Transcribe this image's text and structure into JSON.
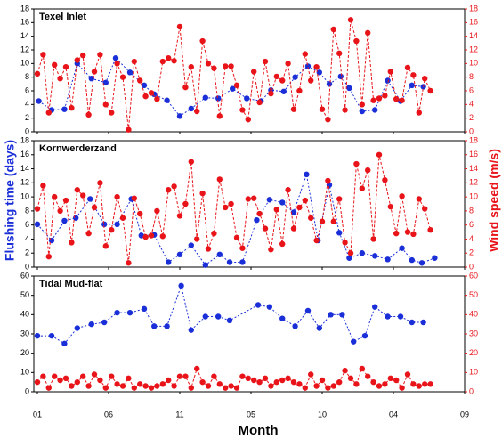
{
  "xlabel": "Month",
  "ylabel": "Flushing time (days)",
  "y2label": "Wind speed (m/s)",
  "xlim": [
    -0.25,
    30
  ],
  "xticks": [
    {
      "value": 0,
      "label": "01"
    },
    {
      "value": 5,
      "label": "06"
    },
    {
      "value": 10,
      "label": "11"
    },
    {
      "value": 15,
      "label": "05"
    },
    {
      "value": 20,
      "label": "10"
    },
    {
      "value": 25,
      "label": "04"
    },
    {
      "value": 30,
      "label": "09"
    }
  ],
  "chart_data": [
    {
      "type": "line",
      "title": "Texel Inlet",
      "ylim": [
        0,
        18
      ],
      "yticks": [
        0,
        2,
        4,
        6,
        8,
        10,
        12,
        14,
        16,
        18
      ],
      "y2lim": [
        0,
        18
      ],
      "y2ticks": [
        0,
        2,
        4,
        6,
        8,
        10,
        12,
        14,
        16,
        18
      ],
      "series": [
        {
          "color": "#1a2fd8",
          "x": [
            0.1,
            1,
            1.9,
            2.8,
            3.8,
            4.8,
            5.5,
            6.5,
            7.5,
            8.2,
            9.1,
            10,
            10.8,
            11.8,
            12.7,
            13.7,
            14.7,
            15.7,
            16.4,
            17.3,
            18.1,
            19,
            19.8,
            20.5,
            21.3,
            21.9,
            22.8,
            23.7,
            24.6,
            25.5,
            26.3,
            27.1
          ],
          "values": [
            4.5,
            3.2,
            3.3,
            10,
            7.8,
            7.2,
            10.8,
            8.7,
            6.8,
            5.5,
            4.6,
            2.3,
            3.4,
            5,
            4.9,
            6.3,
            4.9,
            4.5,
            6.1,
            5.9,
            8,
            9.6,
            8.7,
            7,
            8.1,
            6.4,
            3,
            3.2,
            7.5,
            4.5,
            6.8,
            6.6
          ]
        },
        {
          "color": "#e8141a",
          "axis": "y2",
          "x": [
            0,
            0.4,
            0.8,
            1.2,
            1.6,
            2,
            2.4,
            2.8,
            3.2,
            3.6,
            4,
            4.4,
            4.8,
            5.2,
            5.6,
            6,
            6.4,
            6.8,
            7.2,
            7.6,
            8,
            8.4,
            8.8,
            9.2,
            9.6,
            10,
            10.4,
            10.8,
            11.2,
            11.6,
            12,
            12.4,
            12.8,
            13.2,
            13.6,
            14,
            14.4,
            14.8,
            15.2,
            15.6,
            16,
            16.4,
            16.8,
            17.2,
            17.6,
            18,
            18.4,
            18.8,
            19.2,
            19.6,
            20,
            20.4,
            20.8,
            21.2,
            21.6,
            22,
            22.4,
            22.8,
            23.2,
            23.6,
            24,
            24.4,
            24.8,
            25.2,
            25.6,
            26,
            26.4,
            26.8,
            27.2,
            27.6
          ],
          "values": [
            8.5,
            11.3,
            2.8,
            9.8,
            7.8,
            9.5,
            3.5,
            10.5,
            11.2,
            2.5,
            8.8,
            11.3,
            4,
            2.8,
            10,
            8,
            0.3,
            10.3,
            7.5,
            5.2,
            5.7,
            4.8,
            10.3,
            10.8,
            10.4,
            15.4,
            6.5,
            9.5,
            3,
            13.3,
            10,
            9.3,
            2.3,
            9.6,
            9.6,
            6.8,
            3.2,
            1.8,
            8.8,
            4.3,
            10.3,
            5.6,
            8.1,
            7.5,
            10,
            3.3,
            6,
            11.4,
            7.5,
            9.5,
            3.3,
            1.8,
            15,
            11.5,
            3.2,
            16.4,
            13.3,
            4,
            14.5,
            4.6,
            4.9,
            5.3,
            8.8,
            4.8,
            4.6,
            9.4,
            8.3,
            2.8,
            7.8,
            6
          ]
        }
      ]
    },
    {
      "type": "line",
      "title": "Kornwerderzand",
      "ylim": [
        0,
        18
      ],
      "yticks": [
        0,
        2,
        4,
        6,
        8,
        10,
        12,
        14,
        16,
        18
      ],
      "y2lim": [
        0,
        18
      ],
      "y2ticks": [
        0,
        2,
        4,
        6,
        8,
        10,
        12,
        14,
        16,
        18
      ],
      "series": [
        {
          "color": "#1a2fd8",
          "x": [
            0,
            1,
            1.9,
            2.7,
            3.7,
            4.7,
            5.6,
            6.6,
            7.3,
            8.2,
            9.2,
            10,
            10.8,
            11.8,
            12.8,
            13.5,
            14.4,
            15.4,
            16.3,
            17.2,
            18,
            18.9,
            19.7,
            20.5,
            21.2,
            21.9,
            22.8,
            23.7,
            24.6,
            25.6,
            26.3,
            27,
            27.9
          ],
          "values": [
            6.1,
            3.8,
            6.6,
            7,
            9.7,
            6.1,
            6.1,
            9.7,
            4.5,
            4.6,
            0.7,
            1.8,
            3.1,
            0.3,
            1.8,
            0.7,
            0.7,
            6.7,
            9.6,
            9.2,
            7.8,
            13.2,
            3.8,
            11.7,
            4.9,
            1.3,
            2,
            1.6,
            1.1,
            2.7,
            1,
            0.6,
            1.3
          ]
        },
        {
          "color": "#e8141a",
          "axis": "y2",
          "x": [
            0,
            0.4,
            0.8,
            1.2,
            1.6,
            2,
            2.4,
            2.8,
            3.2,
            3.6,
            4,
            4.4,
            4.8,
            5.2,
            5.6,
            6,
            6.4,
            6.8,
            7.2,
            7.6,
            8,
            8.4,
            8.8,
            9.2,
            9.6,
            10,
            10.4,
            10.8,
            11.2,
            11.6,
            12,
            12.4,
            12.8,
            13.2,
            13.6,
            14,
            14.4,
            14.8,
            15.2,
            15.6,
            16,
            16.4,
            16.8,
            17.2,
            17.6,
            18,
            18.4,
            18.8,
            19.2,
            19.6,
            20,
            20.4,
            20.8,
            21.2,
            21.6,
            22,
            22.4,
            22.8,
            23.2,
            23.6,
            24,
            24.4,
            24.8,
            25.2,
            25.6,
            26,
            26.4,
            26.8,
            27.2,
            27.6
          ],
          "values": [
            8.3,
            11.6,
            1.5,
            10,
            8,
            9.5,
            3.5,
            11,
            10.2,
            4.8,
            8.5,
            12,
            3,
            5.3,
            10,
            7,
            0.6,
            9.8,
            7.6,
            4.3,
            4.5,
            8,
            4.4,
            11,
            11.5,
            7.3,
            9,
            15,
            4,
            10.5,
            2.6,
            4.8,
            12.5,
            8.5,
            9,
            4.2,
            2.7,
            9.7,
            9.8,
            7.6,
            5.5,
            2.5,
            8.2,
            3.3,
            11,
            5.5,
            8.5,
            9.5,
            7,
            3.8,
            6.5,
            12.3,
            6.5,
            9.7,
            3.5,
            2,
            14.7,
            11.2,
            13.8,
            4,
            16,
            12.4,
            8.6,
            4.8,
            10.1,
            5,
            4.7,
            9.7,
            8.3,
            5.3
          ]
        }
      ]
    },
    {
      "type": "line",
      "title": "Tidal Mud-flat",
      "ylim": [
        0,
        60
      ],
      "yticks": [
        0,
        10,
        20,
        30,
        40,
        50,
        60
      ],
      "y2lim": [
        0,
        60
      ],
      "y2ticks": [
        0,
        10,
        20,
        30,
        40,
        50,
        60
      ],
      "series": [
        {
          "color": "#1a2fd8",
          "x": [
            0,
            1,
            1.9,
            2.8,
            3.8,
            4.7,
            5.6,
            6.5,
            7.5,
            8.2,
            9.1,
            10.1,
            10.8,
            11.8,
            12.7,
            13.5,
            15.5,
            16.3,
            17.2,
            18.1,
            19,
            19.8,
            20.6,
            21.4,
            22.2,
            23,
            23.7,
            24.6,
            25.5,
            26.3,
            27.1
          ],
          "values": [
            29,
            29,
            25,
            33,
            35,
            36,
            41,
            41,
            43,
            34,
            34,
            55,
            32,
            39,
            39,
            37,
            45,
            44,
            38,
            34,
            42,
            33,
            40,
            40,
            26,
            29,
            44,
            39,
            39,
            36,
            36
          ]
        },
        {
          "color": "#e8141a",
          "axis": "y2",
          "x": [
            0,
            0.4,
            0.8,
            1.2,
            1.6,
            2,
            2.4,
            2.8,
            3.2,
            3.6,
            4,
            4.4,
            4.8,
            5.2,
            5.6,
            6,
            6.4,
            6.8,
            7.2,
            7.6,
            8,
            8.4,
            8.8,
            9.2,
            9.6,
            10,
            10.4,
            10.8,
            11.2,
            11.6,
            12,
            12.4,
            12.8,
            13.2,
            13.6,
            14,
            14.4,
            14.8,
            15.2,
            15.6,
            16,
            16.4,
            16.8,
            17.2,
            17.6,
            18,
            18.4,
            18.8,
            19.2,
            19.6,
            20,
            20.4,
            20.8,
            21.2,
            21.6,
            22,
            22.4,
            22.8,
            23.2,
            23.6,
            24,
            24.4,
            24.8,
            25.2,
            25.6,
            26,
            26.4,
            26.8,
            27.2,
            27.6
          ],
          "values": [
            5,
            8,
            2,
            8,
            6,
            7,
            3,
            5,
            8,
            3,
            9,
            6,
            2,
            8,
            4,
            3,
            7,
            2,
            4,
            3,
            2,
            3,
            4,
            6,
            3,
            8,
            8,
            2,
            12,
            5,
            3,
            8,
            4,
            2,
            3,
            2,
            8,
            7,
            6,
            5,
            7,
            3,
            5,
            6,
            7,
            5,
            4,
            2,
            9,
            3,
            6,
            2,
            3,
            5,
            11,
            7,
            4,
            12,
            8,
            5,
            3,
            4,
            7,
            6,
            2,
            9,
            4,
            3,
            4,
            4
          ]
        }
      ]
    }
  ]
}
